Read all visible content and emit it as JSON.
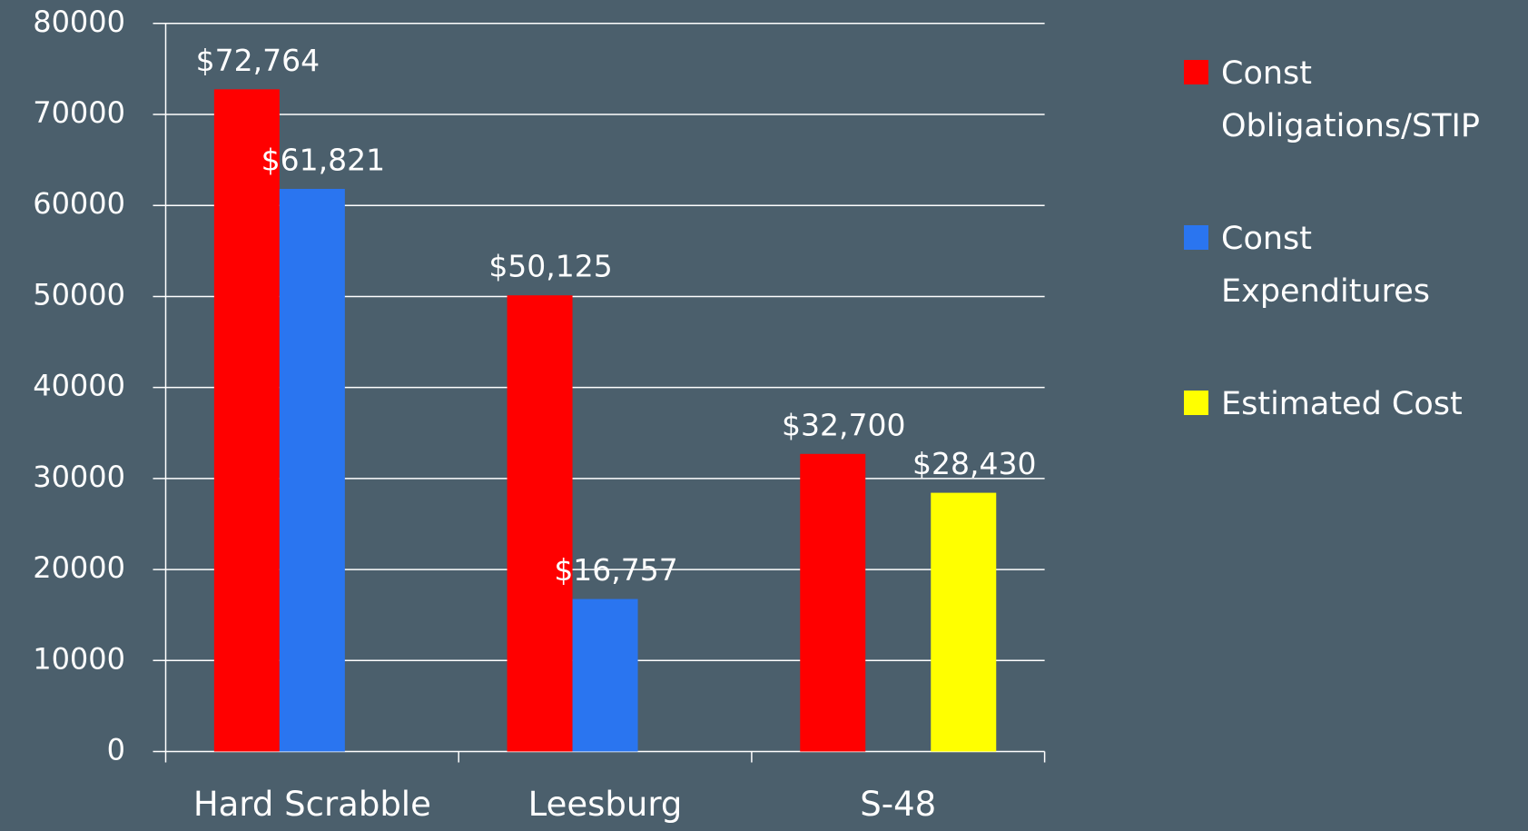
{
  "chart_data": {
    "type": "bar",
    "categories": [
      "Hard Scrabble",
      "Leesburg",
      "S-48"
    ],
    "series": [
      {
        "name": "Const Obligations/STIP",
        "color": "#ff0000",
        "values": [
          72764,
          50125,
          32700
        ],
        "value_labels": [
          "$72,764",
          "$50,125",
          "$32,700"
        ]
      },
      {
        "name": "Const Expenditures",
        "color": "#2a75f0",
        "values": [
          61821,
          16757,
          null
        ],
        "value_labels": [
          "$61,821",
          "$16,757",
          null
        ]
      },
      {
        "name": "Estimated Cost",
        "color": "#ffff00",
        "values": [
          null,
          null,
          28430
        ],
        "value_labels": [
          null,
          null,
          "$28,430"
        ]
      }
    ],
    "ylim": [
      0,
      80000
    ],
    "yticks": [
      0,
      10000,
      20000,
      30000,
      40000,
      50000,
      60000,
      70000,
      80000
    ],
    "grid": true,
    "legend": "right"
  }
}
